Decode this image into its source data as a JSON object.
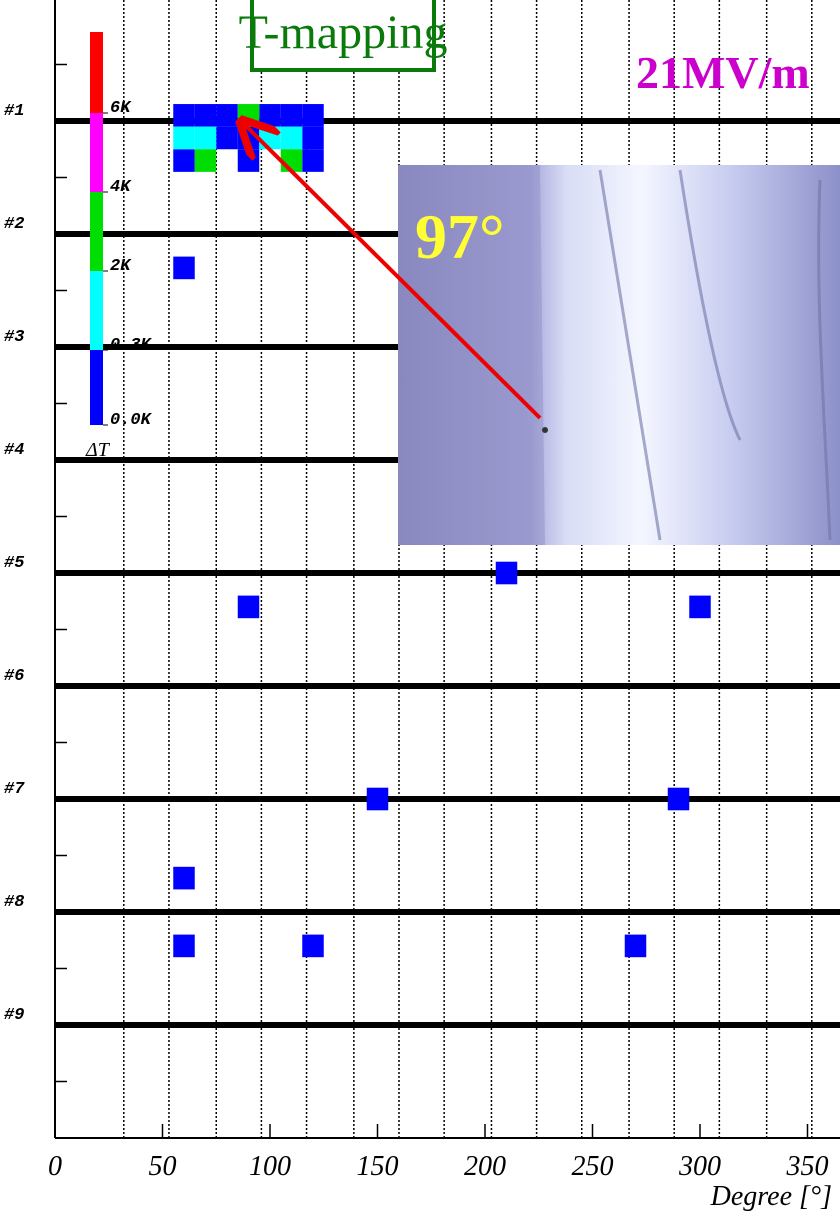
{
  "chart_data": {
    "type": "scatter",
    "title": "T-mapping",
    "annotation": "21MV/m",
    "photo_label": "97°",
    "x_label": "Degree [°]",
    "xlim": [
      0,
      360
    ],
    "xticks": [
      0,
      50,
      100,
      150,
      200,
      250,
      300,
      350
    ],
    "xgrid": [
      32,
      53,
      75,
      96,
      117,
      139,
      160,
      181,
      203,
      224,
      245,
      267,
      288,
      309,
      331,
      352
    ],
    "ylim": [
      0,
      10
    ],
    "yticks": [
      {
        "value": 1,
        "label": "#1"
      },
      {
        "value": 2,
        "label": "#2"
      },
      {
        "value": 3,
        "label": "#3"
      },
      {
        "value": 4,
        "label": "#4"
      },
      {
        "value": 5,
        "label": "#5"
      },
      {
        "value": 6,
        "label": "#6"
      },
      {
        "value": 7,
        "label": "#7"
      },
      {
        "value": 8,
        "label": "#8"
      },
      {
        "value": 9,
        "label": "#9"
      }
    ],
    "yminor": [
      0.5,
      1.5,
      2.5,
      3.5,
      4.5,
      5.5,
      6.5,
      7.5,
      8.5,
      9.5
    ],
    "colorbar": {
      "label": "ΔT",
      "colors": [
        "#0000ff",
        "#00ffff",
        "#00dd00",
        "#ff00ff",
        "#ff0000"
      ],
      "ticks": [
        {
          "value": 0.0,
          "label": "0.0K"
        },
        {
          "value": 0.3,
          "label": "0.3K"
        },
        {
          "value": 2,
          "label": "2K"
        },
        {
          "value": 4,
          "label": "4K"
        },
        {
          "value": 6,
          "label": "6K"
        }
      ]
    },
    "series": [
      {
        "color": "#0000ff",
        "x": [
          60,
          70,
          80,
          100,
          110,
          120,
          80,
          90,
          120,
          60,
          90,
          120,
          60,
          90,
          210,
          300,
          150,
          290,
          60,
          60,
          120,
          270
        ],
        "values": [
          0.95,
          0.95,
          0.95,
          0.95,
          0.95,
          0.95,
          1.15,
          1.15,
          1.15,
          1.35,
          1.35,
          1.35,
          2.3,
          5.3,
          5.0,
          5.3,
          7.0,
          7.0,
          7.7,
          8.3,
          8.3,
          8.3
        ]
      },
      {
        "color": "#00ffff",
        "x": [
          60,
          70,
          100,
          110
        ],
        "values": [
          1.15,
          1.15,
          1.15,
          1.15
        ]
      },
      {
        "color": "#00dd00",
        "x": [
          90,
          70,
          110
        ],
        "values": [
          0.95,
          1.35,
          1.35
        ]
      }
    ]
  }
}
